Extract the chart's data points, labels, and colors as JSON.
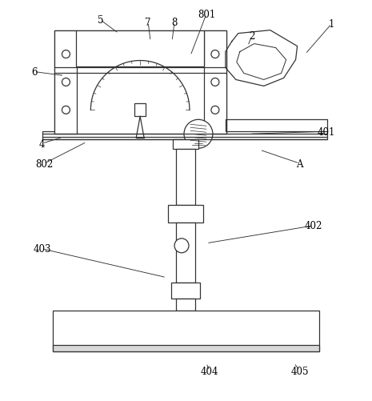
{
  "bg_color": "#ffffff",
  "line_color": "#333333",
  "gray_fill": "#e8e8e8",
  "figsize": [
    4.65,
    5.02
  ],
  "dpi": 100,
  "annotations": [
    [
      "1",
      382,
      68,
      415,
      30
    ],
    [
      "2",
      310,
      58,
      315,
      45
    ],
    [
      "4",
      78,
      172,
      52,
      180
    ],
    [
      "5",
      148,
      42,
      125,
      25
    ],
    [
      "6",
      80,
      95,
      42,
      90
    ],
    [
      "7",
      188,
      52,
      185,
      28
    ],
    [
      "8",
      215,
      52,
      218,
      28
    ],
    [
      "801",
      238,
      70,
      258,
      18
    ],
    [
      "802",
      108,
      178,
      55,
      205
    ],
    [
      "A",
      325,
      188,
      375,
      205
    ],
    [
      "401",
      312,
      168,
      408,
      165
    ],
    [
      "402",
      258,
      305,
      392,
      283
    ],
    [
      "403",
      208,
      348,
      52,
      312
    ],
    [
      "404",
      258,
      455,
      262,
      465
    ],
    [
      "405",
      368,
      455,
      375,
      465
    ]
  ]
}
